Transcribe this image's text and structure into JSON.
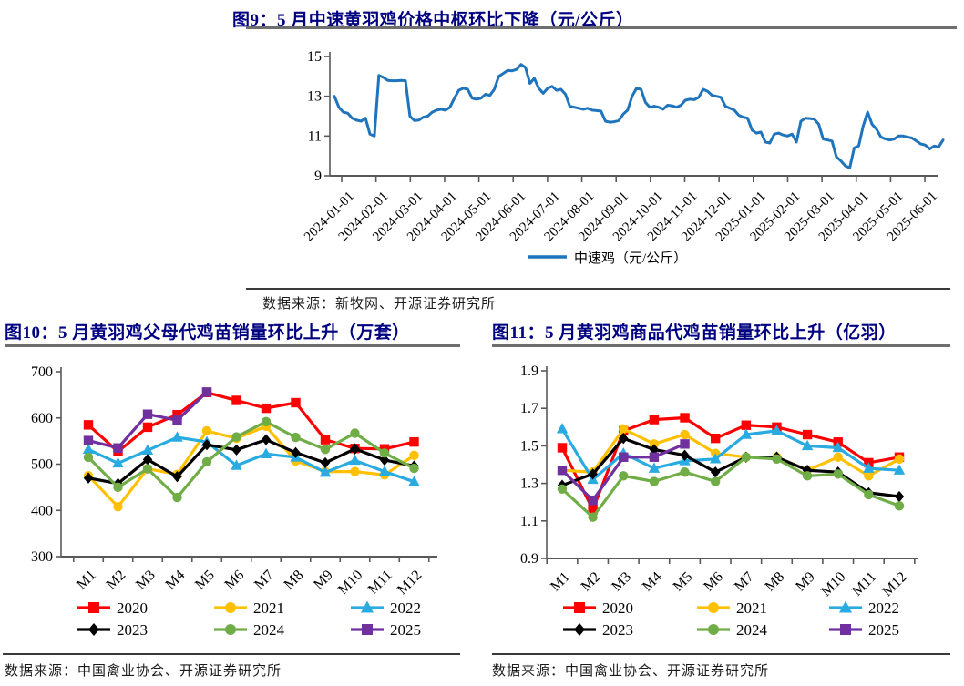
{
  "page_title": "黄羽鸡价格与鸡苗销量图表",
  "accent_colors": {
    "title_navy": "#000080",
    "axis_gray": "#595959",
    "price_line_blue": "#1F74BC"
  },
  "chart_data": [
    {
      "id": "fig9",
      "type": "line",
      "title": "图9：5 月中速黄羽鸡价格中枢环比下降（元/公斤）",
      "source": "数据来源：新牧网、开源证券研究所",
      "ylim": [
        9,
        15
      ],
      "y_ticks": [
        "9",
        "11",
        "13",
        "15"
      ],
      "grid": "off",
      "legend_position": "bottom-center",
      "x_tick_labels": [
        "2024-01-01",
        "2024-02-01",
        "2024-03-01",
        "2024-04-01",
        "2024-05-01",
        "2024-06-01",
        "2024-07-01",
        "2024-08-01",
        "2024-09-01",
        "2024-10-01",
        "2024-11-01",
        "2024-12-01",
        "2025-01-01",
        "2025-02-01",
        "2025-03-01",
        "2025-04-01",
        "2025-05-01",
        "2025-06-01"
      ],
      "series": [
        {
          "name": "中速鸡（元/公斤）",
          "color": "#1F74BC",
          "marker": "none",
          "values": [
            13.0,
            12.45,
            12.2,
            12.15,
            11.9,
            11.8,
            11.75,
            11.9,
            11.1,
            11.0,
            14.05,
            13.95,
            13.8,
            13.78,
            13.78,
            13.8,
            13.78,
            12.0,
            11.78,
            11.8,
            11.95,
            12.0,
            12.2,
            12.3,
            12.35,
            12.3,
            12.45,
            12.9,
            13.3,
            13.4,
            13.35,
            12.9,
            12.85,
            12.9,
            13.1,
            13.05,
            13.35,
            14.0,
            14.15,
            14.3,
            14.28,
            14.35,
            14.6,
            14.45,
            13.65,
            13.9,
            13.4,
            13.15,
            13.4,
            13.5,
            13.3,
            13.35,
            13.1,
            12.5,
            12.45,
            12.4,
            12.35,
            12.4,
            12.3,
            12.28,
            12.25,
            11.75,
            11.7,
            11.72,
            11.78,
            12.1,
            12.3,
            13.0,
            13.4,
            13.35,
            12.7,
            12.45,
            12.5,
            12.45,
            12.35,
            12.55,
            12.52,
            12.45,
            12.55,
            12.8,
            12.85,
            12.83,
            12.95,
            13.35,
            13.25,
            13.05,
            13.0,
            12.95,
            12.5,
            12.4,
            12.3,
            12.05,
            11.95,
            11.9,
            11.3,
            11.15,
            11.2,
            10.7,
            10.65,
            11.1,
            11.15,
            11.05,
            11.0,
            11.1,
            10.7,
            11.75,
            11.9,
            11.88,
            11.85,
            11.6,
            10.85,
            10.8,
            10.75,
            9.95,
            9.75,
            9.5,
            9.4,
            10.4,
            10.5,
            11.5,
            12.2,
            11.6,
            11.35,
            10.95,
            10.85,
            10.8,
            10.85,
            11.0,
            11.0,
            10.95,
            10.9,
            10.75,
            10.6,
            10.55,
            10.35,
            10.5,
            10.45,
            10.8
          ]
        }
      ]
    },
    {
      "id": "fig10",
      "type": "line",
      "title": "图10：5 月黄羽鸡父母代鸡苗销量环比上升（万套）",
      "source": "数据来源：中国禽业协会、开源证券研究所",
      "categories": [
        "M1",
        "M2",
        "M3",
        "M4",
        "M5",
        "M6",
        "M7",
        "M8",
        "M9",
        "M10",
        "M11",
        "M12"
      ],
      "ylim": [
        300,
        700
      ],
      "y_ticks": [
        "300",
        "400",
        "500",
        "600",
        "700"
      ],
      "grid": "off",
      "legend_position": "bottom",
      "series": [
        {
          "name": "2020",
          "color": "#FF0000",
          "marker": "square",
          "values": [
            585,
            527,
            580,
            607,
            655,
            638,
            621,
            633,
            553,
            534,
            533,
            548
          ]
        },
        {
          "name": "2021",
          "color": "#FFC000",
          "marker": "circle",
          "values": [
            475,
            408,
            490,
            478,
            572,
            556,
            582,
            507,
            484,
            484,
            477,
            519
          ]
        },
        {
          "name": "2022",
          "color": "#29ABE2",
          "marker": "triangle",
          "values": [
            532,
            502,
            530,
            558,
            548,
            497,
            522,
            515,
            482,
            508,
            484,
            462
          ]
        },
        {
          "name": "2023",
          "color": "#000000",
          "marker": "diamond",
          "values": [
            470,
            458,
            510,
            473,
            542,
            531,
            553,
            525,
            503,
            533,
            509,
            496
          ]
        },
        {
          "name": "2024",
          "color": "#70AD47",
          "marker": "circle",
          "values": [
            515,
            450,
            490,
            428,
            505,
            559,
            592,
            558,
            532,
            567,
            524,
            491
          ]
        },
        {
          "name": "2025",
          "color": "#7030A0",
          "marker": "square",
          "values": [
            551,
            535,
            608,
            595,
            656
          ]
        }
      ]
    },
    {
      "id": "fig11",
      "type": "line",
      "title": "图11：5 月黄羽鸡商品代鸡苗销量环比上升（亿羽）",
      "source": "数据来源：中国禽业协会、开源证券研究所",
      "categories": [
        "M1",
        "M2",
        "M3",
        "M4",
        "M5",
        "M6",
        "M7",
        "M8",
        "M9",
        "M10",
        "M11",
        "M12"
      ],
      "ylim": [
        0.9,
        1.9
      ],
      "y_ticks": [
        "0.9",
        "1.1",
        "1.3",
        "1.5",
        "1.7",
        "1.9"
      ],
      "grid": "off",
      "legend_position": "bottom",
      "series": [
        {
          "name": "2020",
          "color": "#FF0000",
          "marker": "square",
          "values": [
            1.49,
            1.16,
            1.58,
            1.64,
            1.65,
            1.54,
            1.61,
            1.6,
            1.56,
            1.52,
            1.41,
            1.44
          ]
        },
        {
          "name": "2021",
          "color": "#FFC000",
          "marker": "circle",
          "values": [
            1.37,
            1.36,
            1.59,
            1.51,
            1.56,
            1.46,
            1.44,
            1.44,
            1.37,
            1.44,
            1.34,
            1.43
          ]
        },
        {
          "name": "2022",
          "color": "#29ABE2",
          "marker": "triangle",
          "values": [
            1.59,
            1.32,
            1.46,
            1.38,
            1.42,
            1.43,
            1.56,
            1.58,
            1.5,
            1.49,
            1.38,
            1.37
          ]
        },
        {
          "name": "2023",
          "color": "#000000",
          "marker": "diamond",
          "values": [
            1.29,
            1.35,
            1.54,
            1.48,
            1.45,
            1.36,
            1.44,
            1.44,
            1.37,
            1.36,
            1.25,
            1.23
          ]
        },
        {
          "name": "2024",
          "color": "#70AD47",
          "marker": "circle",
          "values": [
            1.27,
            1.12,
            1.34,
            1.31,
            1.36,
            1.31,
            1.44,
            1.43,
            1.34,
            1.35,
            1.24,
            1.18
          ]
        },
        {
          "name": "2025",
          "color": "#7030A0",
          "marker": "square",
          "values": [
            1.37,
            1.21,
            1.44,
            1.44,
            1.51
          ]
        }
      ]
    }
  ]
}
